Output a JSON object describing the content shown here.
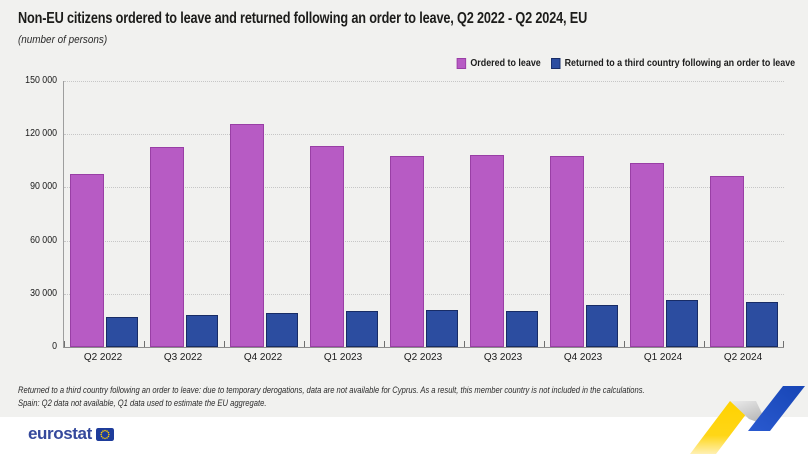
{
  "header": {
    "title": "Non-EU citizens ordered to leave and returned following an order to leave, Q2 2022 - Q2 2024, EU",
    "subtitle": "(number of persons)"
  },
  "chart_data": {
    "type": "bar",
    "title": "Non-EU citizens ordered to leave and returned following an order to leave, Q2 2022 - Q2 2024, EU",
    "subtitle": "(number of persons)",
    "categories": [
      "Q2 2022",
      "Q3 2022",
      "Q4 2022",
      "Q1 2023",
      "Q2 2023",
      "Q3 2023",
      "Q4 2023",
      "Q1 2024",
      "Q2 2024"
    ],
    "series": [
      {
        "name": "Ordered to leave",
        "color": "#b75bc4",
        "border_color": "#993fa5",
        "values": [
          97500,
          112500,
          126000,
          113500,
          107500,
          108500,
          107500,
          104000,
          96500
        ]
      },
      {
        "name": "Returned to a third country following an order to leave",
        "color": "#2c4da0",
        "border_color": "#182c66",
        "values": [
          17000,
          18000,
          19000,
          20500,
          21000,
          20500,
          23500,
          26500,
          25500
        ]
      }
    ],
    "ylim": [
      0,
      150000
    ],
    "ytick_labels": [
      "0",
      "30 000",
      "60 000",
      "90 000",
      "120 000",
      "150 000"
    ],
    "xlabel": "",
    "ylabel": "number of persons",
    "grid": "horizontal-dotted",
    "legend_position": "top-right"
  },
  "footnotes": [
    "Returned to a third country following an order to leave: due to temporary derogations, data are not available for Cyprus. As a result, this member country is not included in the calculations.",
    "Spain: Q2 data not available, Q1 data used to estimate the EU aggregate."
  ],
  "footer": {
    "brand": "eurostat",
    "flag_icon": "eu-flag-icon",
    "decoration_colors": {
      "yellow": "#ffd400",
      "silver": "#c9c9c9",
      "blue": "#2050c8"
    }
  }
}
